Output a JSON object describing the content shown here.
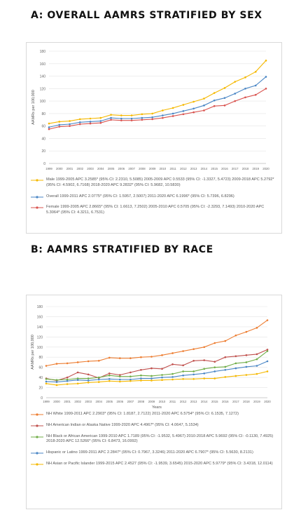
{
  "headings": {
    "a": "A: OVERALL AAMRS STRATIFIED BY SEX",
    "b": "B: AAMRS STRATIFIED BY RACE"
  },
  "chart_data": [
    {
      "type": "line",
      "ylabel": "AAMRs per 100,000",
      "xlabel": "",
      "ylim": [
        0,
        180
      ],
      "yticks": [
        0,
        20,
        40,
        60,
        80,
        100,
        120,
        140,
        160,
        180
      ],
      "x": [
        "1999",
        "2000",
        "2001",
        "2002",
        "2003",
        "2004",
        "2005",
        "2006",
        "2007",
        "2008",
        "2009",
        "2010",
        "2011",
        "2012",
        "2013",
        "2014",
        "2015",
        "2016",
        "2017",
        "2018",
        "2019",
        "2020"
      ],
      "grid": true,
      "legend": "bottom",
      "series": [
        {
          "name": "Male 1999-2005 APC 3.2585* (95% CI: 2.2310, 5.5085) 2005-2009 APC 0.5533 (95% CI: -1.3327, 5.4723) 2009-2018 APC 5.2792* (95% CI: 4.5902, 6.7168) 2018-2020 APC 9.2832* (95% CI: 5.9682, 10.5830)",
          "color": "#f5b800",
          "values": [
            64,
            67,
            68,
            71,
            72,
            73,
            78,
            77,
            77,
            79,
            80,
            85,
            89,
            94,
            99,
            104,
            113,
            121,
            131,
            138,
            147,
            165
          ]
        },
        {
          "name": "Overall 1999-2011 APC 2.0775* (95% CI: 1.5957, 2.5007) 2011-2020 APC 6.1996* (95% CI: 5.7396, 6.8296)",
          "color": "#4a86c5",
          "values": [
            58,
            62,
            63,
            66,
            67,
            68,
            73,
            72,
            72,
            73,
            74,
            77,
            80,
            84,
            88,
            93,
            101,
            105,
            112,
            120,
            125,
            139
          ]
        },
        {
          "name": "Female 1999-2005 APC 2.8665* (95% CI: 1.6613, 7.2502) 2005-2010 APC 0.5705 (95% CI: -2.3293, 7.1493) 2010-2020 APC 5.3064* (95% CI: 4.3211, 6.7531)",
          "color": "#d9534f",
          "values": [
            55,
            59,
            60,
            63,
            64,
            65,
            70,
            69,
            69,
            70,
            71,
            73,
            76,
            79,
            82,
            85,
            92,
            93,
            100,
            106,
            110,
            120
          ]
        }
      ]
    },
    {
      "type": "line",
      "ylabel": "AAMRs per 100,000",
      "xlabel": "Years",
      "ylim": [
        0,
        180
      ],
      "yticks": [
        0,
        20,
        40,
        60,
        80,
        100,
        120,
        140,
        160,
        180
      ],
      "x": [
        "1999",
        "2000",
        "2001",
        "2002",
        "2003",
        "2004",
        "2005",
        "2006",
        "2007",
        "2008",
        "2009",
        "2010",
        "2011",
        "2012",
        "2013",
        "2014",
        "2015",
        "2016",
        "2017",
        "2018",
        "2019",
        "2020"
      ],
      "grid": true,
      "legend": "bottom",
      "series": [
        {
          "name": "NH White 1999-2011 APC 2.2903* (95% CI: 1.8187, 2.7122) 2011-2020 APC 6.5754* (95% CI: 6.1535, 7.1272)",
          "color": "#ed7d31",
          "values": [
            63,
            67,
            68,
            70,
            72,
            73,
            79,
            78,
            78,
            80,
            81,
            84,
            88,
            92,
            96,
            100,
            108,
            112,
            123,
            130,
            138,
            153
          ]
        },
        {
          "name": "NH American Indian or Alaska Native 1999-2020 APC 4.4967* (95% CI: 4.0647, 5.1534)",
          "color": "#c0504d",
          "values": [
            38,
            34,
            40,
            50,
            46,
            39,
            48,
            45,
            50,
            55,
            58,
            57,
            66,
            64,
            73,
            74,
            71,
            80,
            82,
            84,
            86,
            95
          ]
        },
        {
          "name": "NH Black or African American 1999-2010 APC 1.7189 (95% CI: -1.9532, 5.4967) 2010-2018 APC 5.9692 (95% CI: -0.1130, 7.4925) 2018-2020 APC 12.5266* (95% CI: 6.8473, 16.0992)",
          "color": "#70ad47",
          "values": [
            37,
            35,
            36,
            38,
            38,
            40,
            44,
            42,
            42,
            44,
            43,
            45,
            47,
            52,
            52,
            57,
            60,
            61,
            68,
            70,
            76,
            92
          ]
        },
        {
          "name": "Hispanic or Latino 1999-2011 APC 2.2847* (95% CI: 0.7967, 3.3246) 2011-2020 APC 6.7907* (95% CI: 5.5630, 8.2131)",
          "color": "#4a86c5",
          "values": [
            32,
            31,
            33,
            35,
            34,
            36,
            37,
            36,
            36,
            38,
            38,
            40,
            41,
            44,
            46,
            48,
            52,
            55,
            58,
            61,
            63,
            72
          ]
        },
        {
          "name": "NH Asian or Pacific Islander 1999-2015 APC 2.4527 (95% CI: -1.9539, 3.6545) 2015-2020 APC 5.9779* (95% CI: 3.4318, 12.0114)",
          "color": "#f5b800",
          "values": [
            28,
            25,
            27,
            28,
            30,
            31,
            33,
            32,
            33,
            34,
            34,
            35,
            36,
            37,
            37,
            38,
            38,
            41,
            43,
            45,
            47,
            52
          ]
        }
      ]
    }
  ]
}
